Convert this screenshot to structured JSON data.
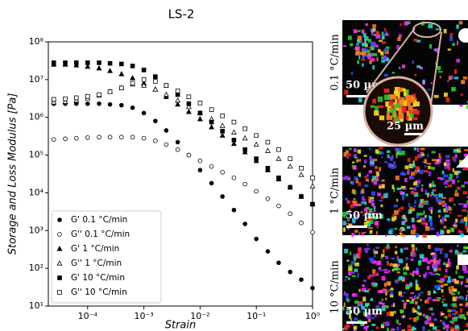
{
  "chart_data": {
    "type": "scatter",
    "title": "LS-2",
    "xlabel": "Strain",
    "ylabel": "Storage and Loss Modulus [Pa]",
    "xscale": "log",
    "yscale": "log",
    "xlim": [
      2e-05,
      1
    ],
    "ylim": [
      10,
      100000000
    ],
    "xticks": [
      {
        "value": 0.0001,
        "label": "10⁻⁴"
      },
      {
        "value": 0.001,
        "label": "10⁻³"
      },
      {
        "value": 0.01,
        "label": "10⁻²"
      },
      {
        "value": 0.1,
        "label": "10⁻¹"
      },
      {
        "value": 1,
        "label": "10⁰"
      }
    ],
    "yticks": [
      {
        "value": 10,
        "label": "10¹"
      },
      {
        "value": 100,
        "label": "10²"
      },
      {
        "value": 1000,
        "label": "10³"
      },
      {
        "value": 10000,
        "label": "10⁴"
      },
      {
        "value": 100000,
        "label": "10⁵"
      },
      {
        "value": 1000000,
        "label": "10⁶"
      },
      {
        "value": 10000000,
        "label": "10⁷"
      },
      {
        "value": 100000000,
        "label": "10⁸"
      }
    ],
    "legend": "lower left",
    "x": [
      2.5e-05,
      4e-05,
      6.3e-05,
      0.0001,
      0.00016,
      0.00025,
      0.0004,
      0.00063,
      0.001,
      0.0016,
      0.0025,
      0.004,
      0.0063,
      0.01,
      0.016,
      0.025,
      0.04,
      0.063,
      0.1,
      0.16,
      0.25,
      0.4,
      0.63,
      1
    ],
    "series": [
      {
        "name": "G' 0.1 °C/min",
        "color": "#000000",
        "marker": "circle",
        "filled": true,
        "values": [
          2300000,
          2300000,
          2300000,
          2300000,
          2300000,
          2200000,
          2100000,
          1800000,
          1300000,
          800000,
          450000,
          220000,
          100000,
          40000,
          18000,
          8000,
          3500,
          1500,
          600,
          280,
          140,
          80,
          50,
          30
        ]
      },
      {
        "name": "G'' 0.1 °C/min",
        "color": "#000000",
        "marker": "circle",
        "filled": false,
        "values": [
          260000,
          270000,
          280000,
          290000,
          300000,
          300000,
          300000,
          300000,
          280000,
          240000,
          190000,
          140000,
          100000,
          70000,
          50000,
          35000,
          25000,
          17000,
          11000,
          7000,
          4500,
          2800,
          1600,
          900
        ]
      },
      {
        "name": "G' 1 °C/min",
        "color": "#000000",
        "marker": "triangle",
        "filled": true,
        "values": [
          25000000,
          25000000,
          24000000,
          22000000,
          20000000,
          17000000,
          14000000,
          11000000,
          8000000,
          5500000,
          3500000,
          2200000,
          1400000,
          900000,
          550000,
          330000,
          200000,
          120000,
          70000,
          40000,
          23000,
          14000,
          8000,
          5000
        ]
      },
      {
        "name": "G'' 1 °C/min",
        "color": "#000000",
        "marker": "triangle",
        "filled": false,
        "values": [
          2500000,
          2600000,
          2800000,
          3200000,
          3800000,
          4800000,
          6000000,
          7500000,
          7000000,
          5500000,
          4000000,
          2800000,
          1900000,
          1300000,
          900000,
          600000,
          400000,
          280000,
          190000,
          130000,
          80000,
          50000,
          30000,
          15000
        ]
      },
      {
        "name": "G' 10 °C/min",
        "color": "#000000",
        "marker": "square",
        "filled": true,
        "values": [
          28000000,
          28000000,
          28000000,
          28000000,
          28000000,
          27000000,
          26000000,
          23000000,
          18000000,
          12000000,
          7000000,
          4000000,
          2300000,
          1300000,
          750000,
          430000,
          250000,
          140000,
          80000,
          45000,
          25000,
          14000,
          8000,
          5000
        ]
      },
      {
        "name": "G'' 10 °C/min",
        "color": "#000000",
        "marker": "square",
        "filled": false,
        "values": [
          3000000,
          3100000,
          3300000,
          3600000,
          4000000,
          4800000,
          6000000,
          8000000,
          10000000,
          9000000,
          7000000,
          5000000,
          3500000,
          2400000,
          1600000,
          1100000,
          750000,
          500000,
          330000,
          220000,
          140000,
          80000,
          45000,
          25000
        ]
      }
    ]
  },
  "micrographs": [
    {
      "rate": "0.1 °C/min",
      "scale": "50 µm",
      "inset_scale": "25 µm"
    },
    {
      "rate": "1 °C/min",
      "scale": "50 µm"
    },
    {
      "rate": "10 °C/min",
      "scale": "50 µm"
    }
  ]
}
